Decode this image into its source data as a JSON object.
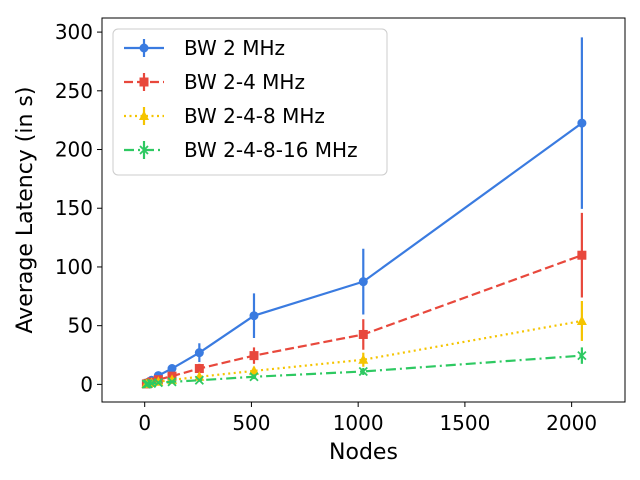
{
  "chart_data": {
    "type": "line",
    "title": "",
    "xlabel": "Nodes",
    "ylabel": "Average Latency (in s)",
    "xlim": [
      -200,
      2250
    ],
    "ylim": [
      -15,
      312
    ],
    "xticks": [
      0,
      500,
      1000,
      1500,
      2000
    ],
    "xtick_labels": [
      "0",
      "500",
      "1000",
      "1500",
      "2000"
    ],
    "yticks": [
      0,
      50,
      100,
      150,
      200,
      250,
      300
    ],
    "ytick_labels": [
      "0",
      "50",
      "100",
      "150",
      "200",
      "250",
      "300"
    ],
    "legend_position": "top-left",
    "x": [
      8,
      16,
      32,
      64,
      128,
      256,
      512,
      1024,
      2048
    ],
    "series": [
      {
        "name": "BW 2 MHz",
        "color": "#3a7be0",
        "marker": "circle",
        "linestyle": "solid",
        "values": [
          0.8,
          1.8,
          3.5,
          7.5,
          13.5,
          27,
          58.5,
          87.5,
          222.5
        ],
        "errors": [
          0.3,
          0.6,
          1.2,
          2,
          3.5,
          8,
          19,
          28,
          73
        ]
      },
      {
        "name": "BW 2-4 MHz",
        "color": "#e8483c",
        "marker": "square",
        "linestyle": "dashed",
        "values": [
          0.4,
          0.9,
          2,
          4,
          7,
          13.5,
          24.5,
          42.5,
          110
        ],
        "errors": [
          0.2,
          0.4,
          0.8,
          1.5,
          2.5,
          4,
          7,
          13,
          36
        ]
      },
      {
        "name": "BW 2-4-8 MHz",
        "color": "#f5c400",
        "marker": "triangle",
        "linestyle": "dotted",
        "values": [
          0.3,
          0.6,
          1.2,
          2.2,
          3.8,
          6.5,
          11.5,
          21,
          54
        ],
        "errors": [
          0.1,
          0.2,
          0.4,
          0.8,
          1.2,
          2,
          3.5,
          6,
          17
        ]
      },
      {
        "name": "BW 2-4-8-16 MHz",
        "color": "#2ec962",
        "marker": "x",
        "linestyle": "dashdot",
        "values": [
          0.2,
          0.4,
          0.8,
          1.5,
          2.2,
          3.5,
          6.5,
          11,
          24.5
        ],
        "errors": [
          0.1,
          0.15,
          0.3,
          0.5,
          0.8,
          1.2,
          2,
          3,
          7
        ]
      }
    ]
  }
}
